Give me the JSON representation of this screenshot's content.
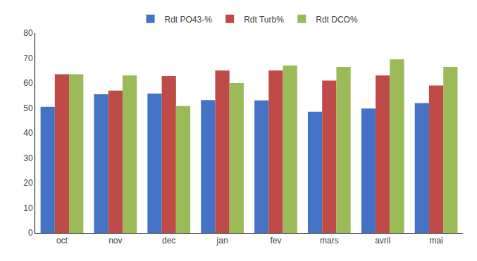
{
  "chart_data": {
    "type": "bar",
    "categories": [
      "oct",
      "nov",
      "dec",
      "jan",
      "fev",
      "mars",
      "avril",
      "mai"
    ],
    "series": [
      {
        "name": "Rdt PO43-%",
        "color": "#4472C4",
        "values": [
          50.5,
          55.5,
          55.8,
          53.2,
          53.0,
          48.5,
          49.8,
          52.0
        ]
      },
      {
        "name": "Rdt Turb%",
        "color": "#BE4B48",
        "values": [
          63.5,
          57.0,
          62.8,
          65.0,
          65.0,
          61.0,
          63.0,
          59.0
        ]
      },
      {
        "name": "Rdt DCO%",
        "color": "#9BBB59",
        "values": [
          63.5,
          63.0,
          50.8,
          60.0,
          67.0,
          66.5,
          69.5,
          66.5
        ]
      }
    ],
    "ylim": [
      0,
      80
    ],
    "yticks": [
      0,
      10,
      20,
      30,
      40,
      50,
      60,
      70,
      80
    ],
    "grid": false,
    "legend": "top"
  }
}
